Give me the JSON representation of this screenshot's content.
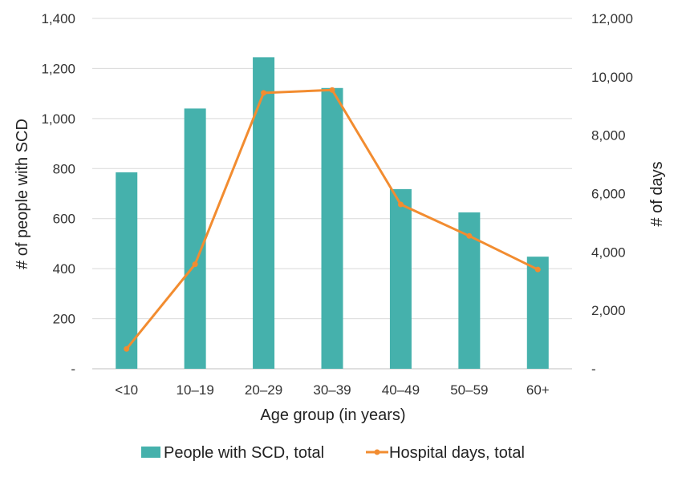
{
  "chart_data": {
    "type": "bar+line",
    "title": "",
    "categories": [
      "<10",
      "10–19",
      "20–29",
      "30–39",
      "40–49",
      "50–59",
      "60+"
    ],
    "series": [
      {
        "name": "People with SCD, total",
        "type": "bar",
        "axis": "left",
        "color": "#45B1AC",
        "values": [
          785,
          1040,
          1245,
          1122,
          718,
          625,
          448
        ]
      },
      {
        "name": "Hospital days, total",
        "type": "line",
        "axis": "right",
        "color": "#F28C30",
        "values": [
          680,
          3580,
          9450,
          9550,
          5630,
          4550,
          3400
        ]
      }
    ],
    "xlabel": "Age group (in years)",
    "ylabel": "# of people with SCD",
    "ylabel_right": "# of days",
    "ylim": [
      0,
      1400
    ],
    "ylim_right": [
      0,
      12000
    ],
    "yticks": [
      "-",
      "200",
      "400",
      "600",
      "800",
      "1,000",
      "1,200",
      "1,400"
    ],
    "yticks_right": [
      "-",
      "2,000",
      "4,000",
      "6,000",
      "8,000",
      "10,000",
      "12,000"
    ],
    "grid": true,
    "legend_position": "bottom"
  }
}
